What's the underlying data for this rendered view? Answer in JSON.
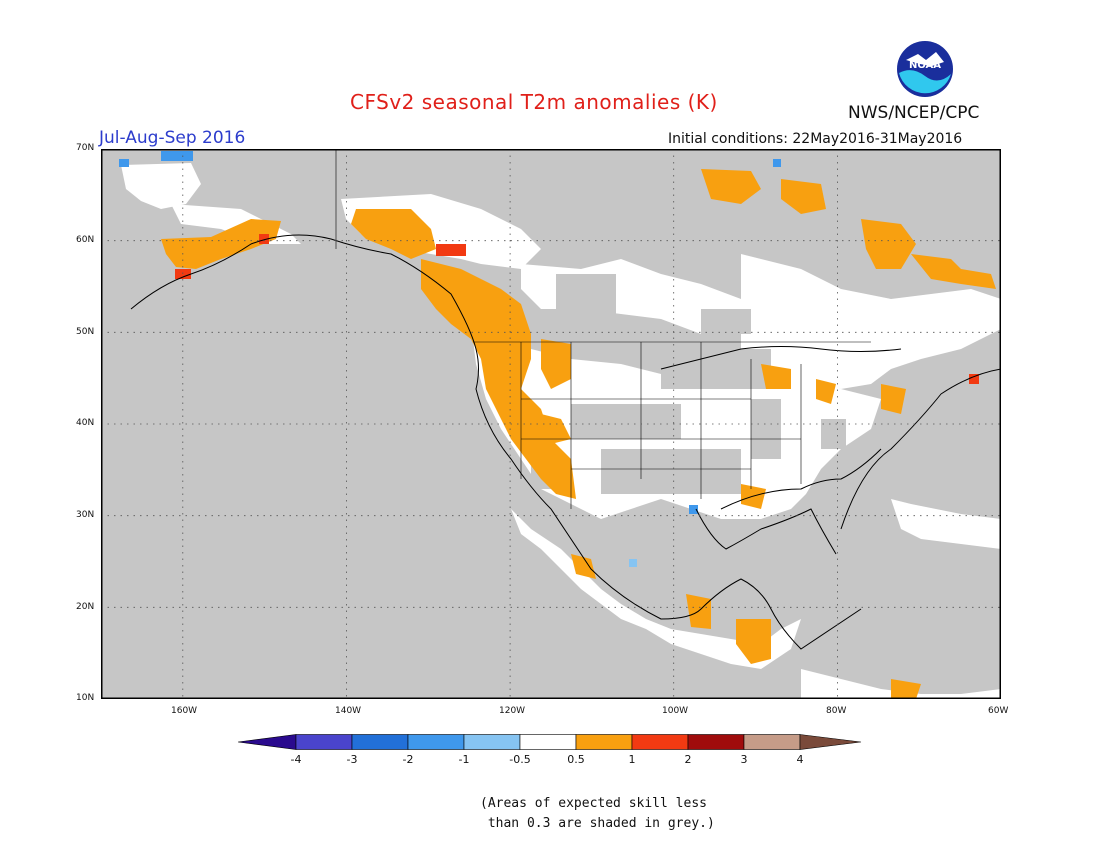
{
  "header": {
    "title": "CFSv2 seasonal T2m anomalies (K)",
    "season": "Jul-Aug-Sep 2016",
    "agency": "NWS/NCEP/CPC",
    "initial_conditions": "Initial conditions: 22May2016-31May2016",
    "logo": {
      "text": "NOAA",
      "icon": "noaa-logo-icon",
      "colors": [
        "#1a2e9c",
        "#30c8ee",
        "#ffffff"
      ]
    }
  },
  "map": {
    "extent": {
      "lon": [
        -170,
        -60
      ],
      "lat": [
        10,
        70
      ]
    },
    "grid": "dotted",
    "lat_labels": [
      "70N",
      "60N",
      "50N",
      "40N",
      "30N",
      "20N",
      "10N"
    ],
    "lon_labels": [
      "160W",
      "140W",
      "120W",
      "100W",
      "80W",
      "60W"
    ],
    "colors": {
      "ocean": "#c6c6c6",
      "low_skill": "#c6c6c6",
      "near_zero": "#ffffff",
      "coast": "#000000",
      "border": "#000000"
    }
  },
  "colorbar": {
    "labels": [
      "-4",
      "-3",
      "-2",
      "-1",
      "-0.5",
      "0.5",
      "1",
      "2",
      "3",
      "4"
    ],
    "colors": [
      "#2a0a8e",
      "#4a44cc",
      "#2270d8",
      "#3f98ec",
      "#86c4f2",
      "#ffffff",
      "#f8a010",
      "#f23a12",
      "#a00c0c",
      "#c69c88",
      "#7a4a3a"
    ]
  },
  "note": [
    "(Areas of expected skill less",
    " than 0.3 are shaded in grey.)"
  ]
}
